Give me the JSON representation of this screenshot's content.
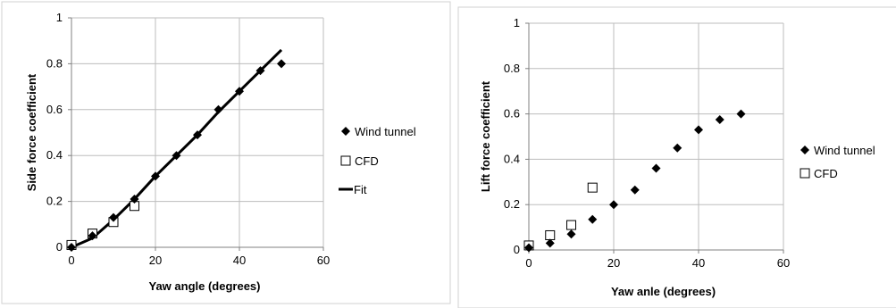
{
  "chart_data": [
    {
      "type": "scatter",
      "xlabel": "Yaw angle (degrees)",
      "ylabel": "Side force coefficient",
      "xlim": [
        0,
        60
      ],
      "ylim": [
        0,
        1
      ],
      "xticks": [
        "0",
        "20",
        "40",
        "60"
      ],
      "yticks": [
        "0",
        "0.2",
        "0.4",
        "0.6",
        "0.8",
        "1"
      ],
      "grid": true,
      "legend_position": "right",
      "series": [
        {
          "name": "Wind tunnel",
          "marker": "filled-diamond",
          "color": "#000000",
          "x": [
            0,
            5,
            10,
            15,
            20,
            25,
            30,
            35,
            40,
            45,
            50
          ],
          "y": [
            0.0,
            0.05,
            0.13,
            0.21,
            0.31,
            0.4,
            0.49,
            0.6,
            0.68,
            0.77,
            0.8
          ]
        },
        {
          "name": "CFD",
          "marker": "open-square",
          "color": "#000000",
          "x": [
            0,
            5,
            10,
            15
          ],
          "y": [
            0.01,
            0.06,
            0.11,
            0.18
          ]
        },
        {
          "name": "Fit",
          "marker": "line",
          "color": "#000000",
          "x": [
            0,
            5,
            10,
            15,
            20,
            25,
            30,
            35,
            40,
            45,
            50
          ],
          "y": [
            0.0,
            0.04,
            0.12,
            0.21,
            0.31,
            0.4,
            0.49,
            0.59,
            0.68,
            0.77,
            0.86
          ]
        }
      ]
    },
    {
      "type": "scatter",
      "xlabel": "Yaw anle (degrees)",
      "ylabel": "Lift force coefficient",
      "xlim": [
        0,
        60
      ],
      "ylim": [
        0,
        1
      ],
      "xticks": [
        "0",
        "20",
        "40",
        "60"
      ],
      "yticks": [
        "0",
        "0.2",
        "0.4",
        "0.6",
        "0.8",
        "1"
      ],
      "grid": true,
      "legend_position": "right",
      "series": [
        {
          "name": "Wind tunnel",
          "marker": "filled-diamond",
          "color": "#000000",
          "x": [
            0,
            5,
            10,
            15,
            20,
            25,
            30,
            35,
            40,
            45,
            50
          ],
          "y": [
            0.01,
            0.03,
            0.07,
            0.135,
            0.2,
            0.265,
            0.36,
            0.45,
            0.53,
            0.575,
            0.6
          ]
        },
        {
          "name": "CFD",
          "marker": "open-square",
          "color": "#000000",
          "x": [
            0,
            5,
            10,
            15
          ],
          "y": [
            0.02,
            0.065,
            0.11,
            0.275
          ]
        }
      ]
    }
  ]
}
